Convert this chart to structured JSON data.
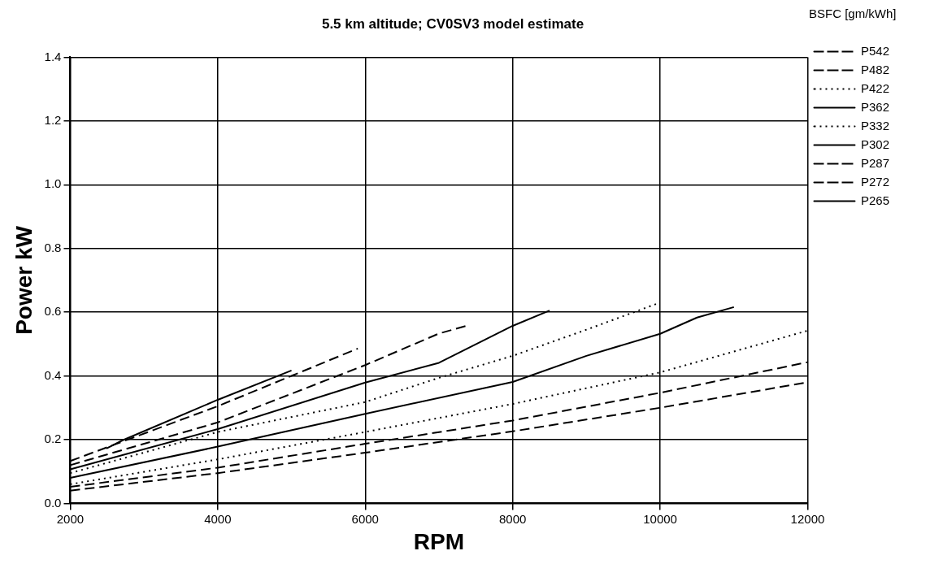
{
  "chart_data": {
    "type": "line",
    "title": "5.5 km altitude; CV0SV3 model estimate",
    "xlabel": "RPM",
    "ylabel": "Power kW",
    "legend_title": "BSFC [gm/kWh]",
    "legend": "right",
    "grid": true,
    "marker": "none",
    "xlim": [
      2000,
      12000
    ],
    "xticks": [
      2000,
      4000,
      6000,
      8000,
      10000,
      12000
    ],
    "ylim": [
      0,
      1.4
    ],
    "yticks": [
      {
        "value": 0,
        "label": "0.0"
      },
      0.2,
      0.4,
      0.6,
      0.8,
      {
        "value": 1,
        "label": "1.0"
      },
      1.2,
      1.4
    ],
    "series": [
      {
        "name": "P542",
        "color": "#000000",
        "line_style": "dashed",
        "x": [
          2000,
          4000,
          6000,
          8000,
          10000,
          12000
        ],
        "values": [
          0.04,
          0.095,
          0.159,
          0.226,
          0.3,
          0.38
        ]
      },
      {
        "name": "P482",
        "color": "#000000",
        "line_style": "dashed",
        "x": [
          2000,
          4000,
          6000,
          8000,
          10000,
          12000
        ],
        "values": [
          0.052,
          0.112,
          0.187,
          0.26,
          0.347,
          0.443
        ]
      },
      {
        "name": "P422",
        "color": "#000000",
        "line_style": "dotted",
        "x": [
          2000,
          4000,
          6000,
          8000,
          10000,
          12000
        ],
        "values": [
          0.06,
          0.138,
          0.224,
          0.312,
          0.411,
          0.542
        ]
      },
      {
        "name": "P362",
        "color": "#000000",
        "line_style": "solid",
        "x": [
          2000,
          4000,
          6000,
          8000,
          9000,
          10000,
          10500,
          11000
        ],
        "values": [
          0.08,
          0.178,
          0.281,
          0.381,
          0.463,
          0.532,
          0.583,
          0.616
        ]
      },
      {
        "name": "P332",
        "color": "#000000",
        "line_style": "dotted",
        "x": [
          2000,
          4000,
          6000,
          7000,
          8000,
          9000,
          9950
        ],
        "values": [
          0.095,
          0.224,
          0.318,
          0.394,
          0.463,
          0.545,
          0.626
        ]
      },
      {
        "name": "P302",
        "color": "#000000",
        "line_style": "solid",
        "x": [
          2000,
          4000,
          6000,
          7000,
          8000,
          8500
        ],
        "values": [
          0.107,
          0.233,
          0.379,
          0.441,
          0.557,
          0.605
        ]
      },
      {
        "name": "P287",
        "color": "#000000",
        "line_style": "dashed",
        "x": [
          2000,
          4000,
          6000,
          7000,
          7400
        ],
        "values": [
          0.12,
          0.254,
          0.434,
          0.533,
          0.559
        ]
      },
      {
        "name": "P272",
        "color": "#000000",
        "line_style": "dashed",
        "x": [
          2000,
          4000,
          5000,
          5900
        ],
        "values": [
          0.133,
          0.305,
          0.4,
          0.486
        ]
      },
      {
        "name": "P265",
        "color": "#000000",
        "line_style": "solid",
        "x": [
          2490,
          2710,
          4000,
          5000
        ],
        "values": [
          0.172,
          0.198,
          0.325,
          0.417
        ]
      }
    ]
  }
}
